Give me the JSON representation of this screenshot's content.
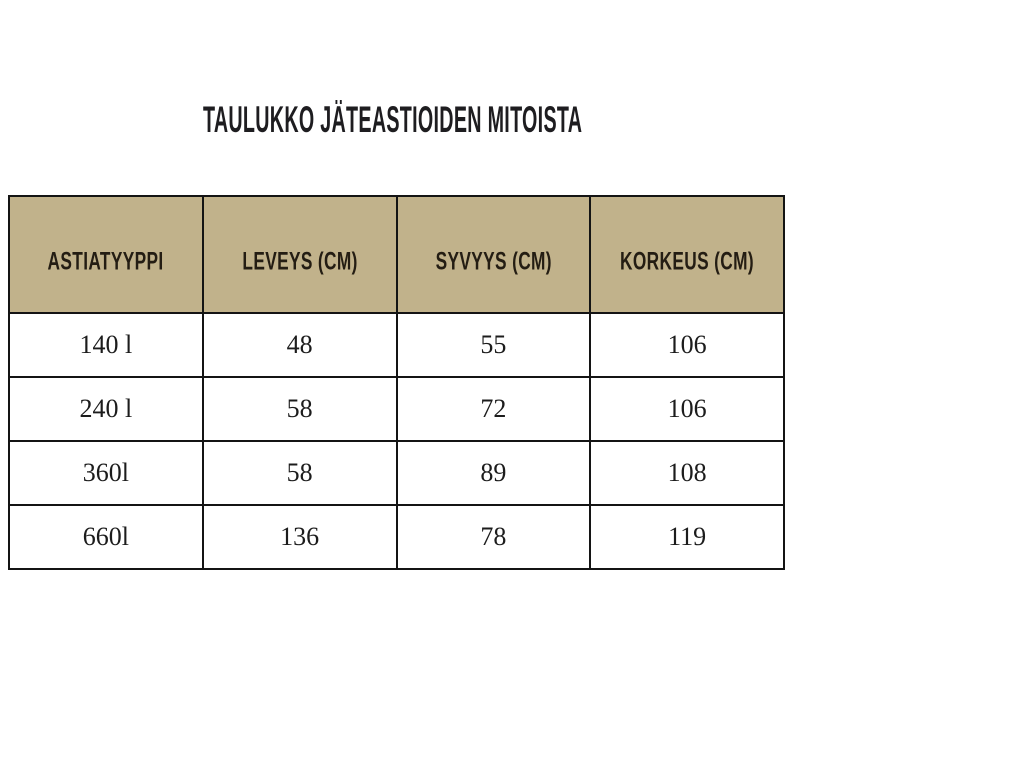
{
  "title": "TAULUKKO JÄTEASTIOIDEN MITOISTA",
  "styles": {
    "header_background": "#c1b28b",
    "border_color": "#141414",
    "title_color": "#1e1d20",
    "cell_text_color": "#1c1c1c"
  },
  "chart_data": {
    "type": "table",
    "title": "TAULUKKO JÄTEASTIOIDEN MITOISTA",
    "columns": [
      "ASTIATYYPPI",
      "LEVEYS (CM)",
      "SYVYYS (CM)",
      "KORKEUS (CM)"
    ],
    "rows": [
      [
        "140 l",
        "48",
        "55",
        "106"
      ],
      [
        "240 l",
        "58",
        "72",
        "106"
      ],
      [
        "360l",
        "58",
        "89",
        "108"
      ],
      [
        "660l",
        "136",
        "78",
        "119"
      ]
    ],
    "layout_hints": {
      "header_fill": "#c1b28b",
      "grid": "all-borders",
      "value_unit": "cm",
      "row_label_unit": "litres"
    }
  }
}
